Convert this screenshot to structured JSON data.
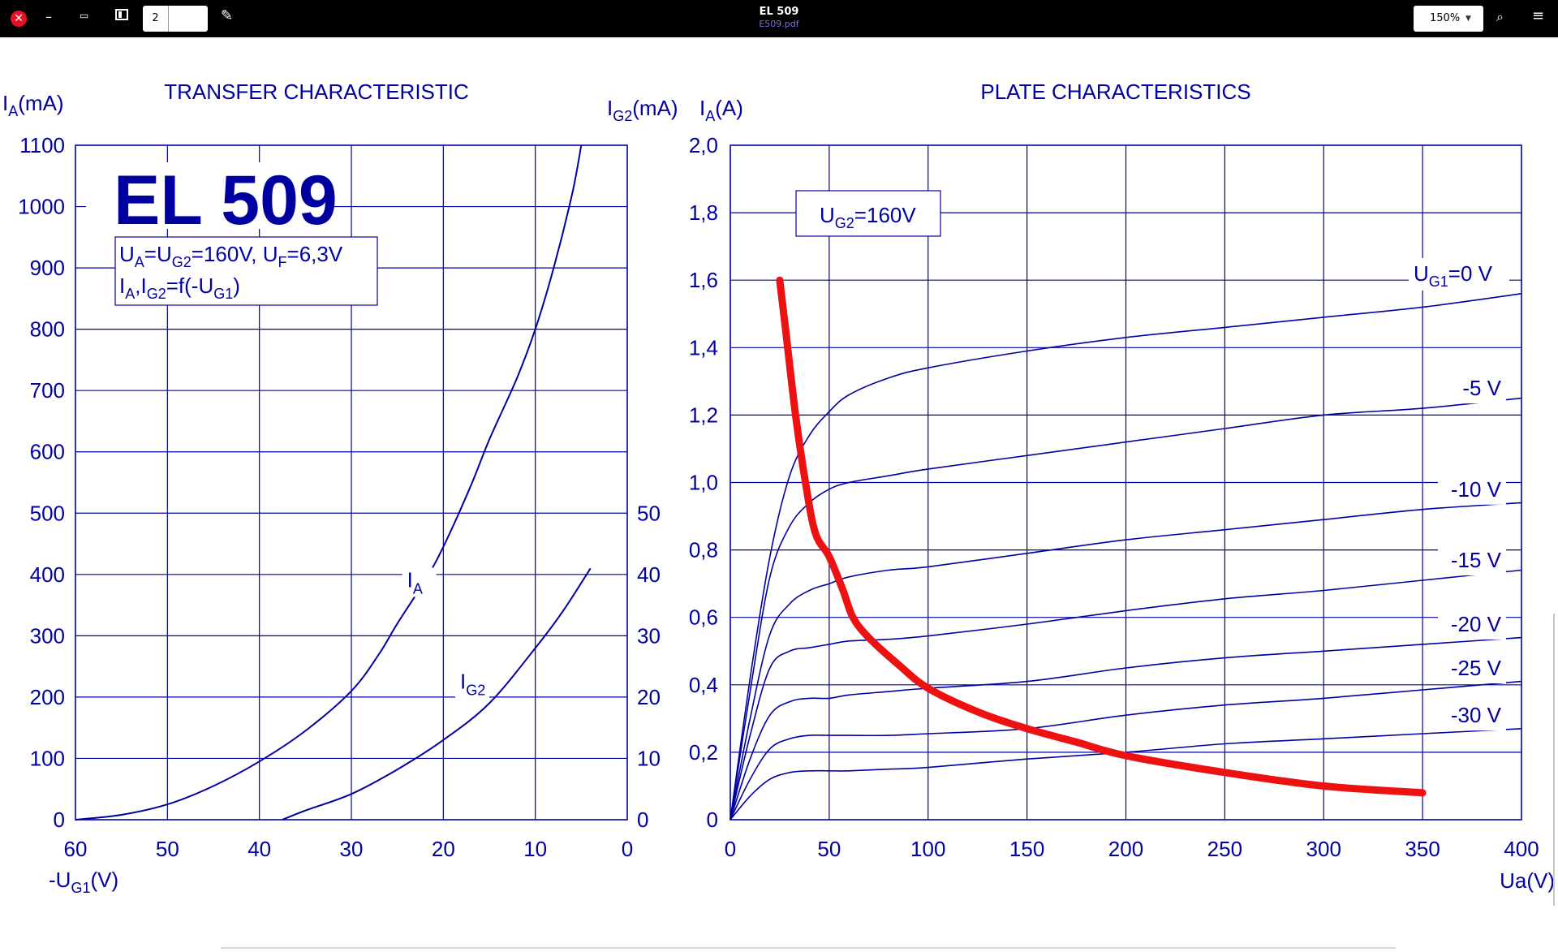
{
  "toolbar": {
    "close_icon": "close-icon",
    "close_glyph": "✕",
    "minimize_glyph": "–",
    "restore_glyph": "▭",
    "page_number": "2",
    "edit_glyph": "✎",
    "title": "EL 509",
    "filename": "E509.pdf",
    "zoom_value": "150%",
    "zoom_arrow": "▼",
    "search_glyph": "⌕",
    "menu_glyph": "≡"
  },
  "chart_data": [
    {
      "type": "line",
      "title": "TRANSFER  CHARACTERISTIC",
      "tube_name": "EL 509",
      "conditions_line1": {
        "p1": "U",
        "s1": "A",
        "p2": "=U",
        "s2": "G2",
        "p3": "=160V, U",
        "s3": "F",
        "p4": "=6,3V"
      },
      "conditions_line2": {
        "p1": "I",
        "s1": "A",
        "p2": ",I",
        "s2": "G2",
        "p3": "=f(-U",
        "s3": "G1",
        "p4": ")"
      },
      "ylabel": {
        "main": "I",
        "sub": "A",
        "unit": "(mA)"
      },
      "y2label": {
        "main": "I",
        "sub": "G2",
        "unit": "(mA)"
      },
      "xlabel": {
        "main": "-U",
        "sub": "G1",
        "unit": "(V)"
      },
      "x_ticks": [
        "60",
        "50",
        "40",
        "30",
        "20",
        "10",
        "0"
      ],
      "y_ticks": [
        "0",
        "100",
        "200",
        "300",
        "400",
        "500",
        "600",
        "700",
        "800",
        "900",
        "1000",
        "1100"
      ],
      "y2_ticks": [
        "0",
        "10",
        "20",
        "30",
        "40",
        "50"
      ],
      "xlim": [
        60,
        0
      ],
      "ylim": [
        0,
        1100
      ],
      "y2lim": [
        0,
        110
      ],
      "series": [
        {
          "name": "IA",
          "label_main": "I",
          "label_sub": "A",
          "axis": "left",
          "x": [
            60,
            55,
            50,
            45,
            40,
            35,
            30,
            27,
            25,
            22,
            20,
            17,
            15,
            12,
            10,
            8,
            6,
            5
          ],
          "y": [
            0,
            8,
            25,
            55,
            95,
            145,
            210,
            270,
            320,
            390,
            445,
            545,
            620,
            720,
            800,
            900,
            1020,
            1100
          ]
        },
        {
          "name": "IG2",
          "label_main": "I",
          "label_sub": "G2",
          "axis": "right",
          "x": [
            37.5,
            35,
            30,
            25,
            20,
            15,
            10,
            7,
            4
          ],
          "y": [
            0,
            1.5,
            4.2,
            8.2,
            13,
            19,
            28,
            34,
            41
          ]
        }
      ]
    },
    {
      "type": "line",
      "title": "PLATE CHARACTERISTICS",
      "ylabel": {
        "main": "I",
        "sub": "A",
        "unit": "(A)"
      },
      "xlabel": "Ua(V)",
      "box_label": {
        "main": "U",
        "sub": "G2",
        "rest": "=160V"
      },
      "first_curve_prefix": {
        "main": "U",
        "sub": "G1",
        "rest": "=0 V"
      },
      "x_ticks": [
        "0",
        "50",
        "100",
        "150",
        "200",
        "250",
        "300",
        "350",
        "400"
      ],
      "y_ticks": [
        "0",
        "0,2",
        "0,4",
        "0,6",
        "0,8",
        "1,0",
        "1,2",
        "1,4",
        "1,6",
        "1,8",
        "2,0"
      ],
      "xlim": [
        0,
        400
      ],
      "ylim": [
        0,
        2.0
      ],
      "series": [
        {
          "name": "0 V",
          "label": "=0 V",
          "x": [
            0,
            10,
            20,
            30,
            40,
            50,
            60,
            80,
            100,
            150,
            200,
            250,
            300,
            350,
            400
          ],
          "y": [
            0,
            0.42,
            0.78,
            1.02,
            1.14,
            1.21,
            1.26,
            1.31,
            1.34,
            1.39,
            1.43,
            1.46,
            1.49,
            1.52,
            1.56
          ],
          "label_y": 1.62
        },
        {
          "name": "-5 V",
          "label": "-5 V",
          "x": [
            0,
            10,
            20,
            30,
            40,
            50,
            60,
            80,
            100,
            150,
            200,
            250,
            300,
            350,
            400
          ],
          "y": [
            0,
            0.38,
            0.72,
            0.87,
            0.94,
            0.98,
            1.0,
            1.02,
            1.04,
            1.08,
            1.12,
            1.16,
            1.2,
            1.22,
            1.25
          ],
          "label_y": 1.28
        },
        {
          "name": "-10 V",
          "label": "-10 V",
          "x": [
            0,
            10,
            20,
            30,
            40,
            50,
            60,
            80,
            100,
            150,
            200,
            250,
            300,
            350,
            400
          ],
          "y": [
            0,
            0.3,
            0.55,
            0.64,
            0.68,
            0.7,
            0.72,
            0.74,
            0.75,
            0.79,
            0.83,
            0.86,
            0.89,
            0.92,
            0.94
          ],
          "label_y": 0.98
        },
        {
          "name": "-15 V",
          "label": "-15 V",
          "x": [
            0,
            10,
            20,
            30,
            40,
            50,
            60,
            80,
            100,
            150,
            200,
            250,
            300,
            350,
            400
          ],
          "y": [
            0,
            0.25,
            0.45,
            0.5,
            0.51,
            0.52,
            0.53,
            0.535,
            0.545,
            0.58,
            0.62,
            0.655,
            0.68,
            0.71,
            0.74
          ],
          "label_y": 0.77
        },
        {
          "name": "-20 V",
          "label": "-20 V",
          "x": [
            0,
            10,
            20,
            30,
            40,
            50,
            60,
            80,
            100,
            150,
            200,
            250,
            300,
            350,
            400
          ],
          "y": [
            0,
            0.18,
            0.31,
            0.35,
            0.36,
            0.36,
            0.37,
            0.38,
            0.39,
            0.41,
            0.45,
            0.48,
            0.5,
            0.52,
            0.54
          ],
          "label_y": 0.58
        },
        {
          "name": "-25 V",
          "label": "-25 V",
          "x": [
            0,
            10,
            20,
            30,
            40,
            50,
            60,
            80,
            100,
            150,
            200,
            250,
            300,
            350,
            400
          ],
          "y": [
            0,
            0.12,
            0.21,
            0.24,
            0.25,
            0.25,
            0.25,
            0.25,
            0.255,
            0.27,
            0.31,
            0.34,
            0.36,
            0.385,
            0.41
          ],
          "label_y": 0.45
        },
        {
          "name": "-30 V",
          "label": "-30 V",
          "x": [
            0,
            10,
            20,
            30,
            40,
            50,
            60,
            80,
            100,
            150,
            200,
            250,
            300,
            350,
            400
          ],
          "y": [
            0,
            0.07,
            0.12,
            0.14,
            0.145,
            0.145,
            0.145,
            0.15,
            0.155,
            0.18,
            0.2,
            0.225,
            0.24,
            0.255,
            0.27
          ],
          "label_y": 0.31
        }
      ],
      "load_line": {
        "color": "#ee1111",
        "x": [
          25,
          28,
          33,
          38,
          43,
          50,
          57,
          62,
          70,
          85,
          100,
          125,
          150,
          175,
          200,
          250,
          300,
          350
        ],
        "y": [
          1.6,
          1.45,
          1.2,
          1.0,
          0.85,
          0.78,
          0.68,
          0.6,
          0.54,
          0.46,
          0.39,
          0.32,
          0.27,
          0.23,
          0.19,
          0.14,
          0.1,
          0.08
        ]
      }
    }
  ]
}
